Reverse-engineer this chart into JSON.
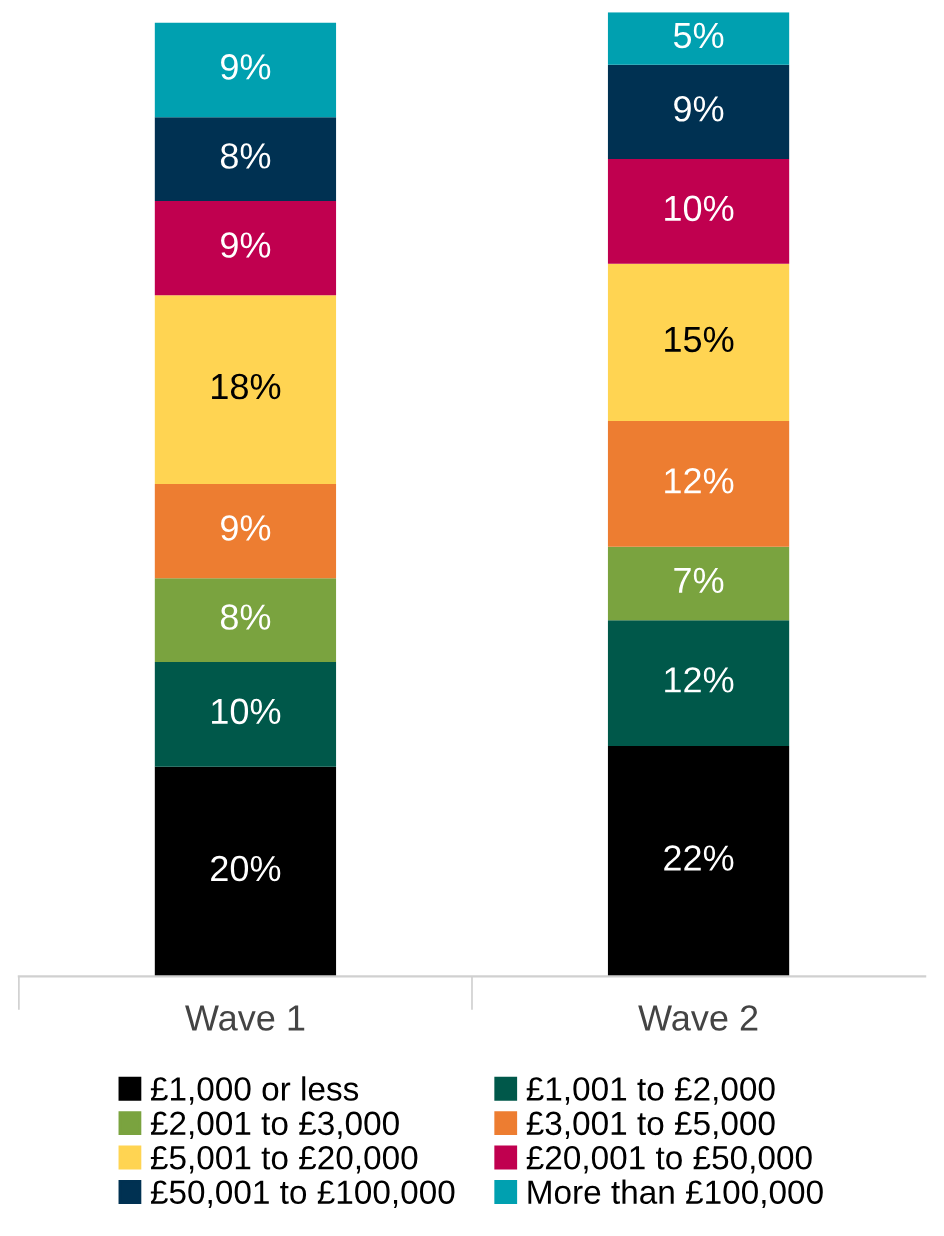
{
  "chart_data": {
    "type": "bar",
    "stacked": true,
    "legend": "bottom",
    "grid": false,
    "categories": [
      "Wave 1",
      "Wave 2"
    ],
    "series": [
      {
        "name": "£1,000 or less",
        "color": "#000000",
        "values": [
          20,
          22
        ],
        "value_labels": [
          "20%",
          "22%"
        ]
      },
      {
        "name": "£1,001 to £2,000",
        "color": "#00584a",
        "values": [
          10,
          12
        ],
        "value_labels": [
          "10%",
          "12%"
        ]
      },
      {
        "name": "£2,001 to £3,000",
        "color": "#7aa33f",
        "values": [
          8,
          7
        ],
        "value_labels": [
          "8%",
          "7%"
        ]
      },
      {
        "name": "£3,001 to £5,000",
        "color": "#ed7d31",
        "values": [
          9,
          12
        ],
        "value_labels": [
          "9%",
          "12%"
        ]
      },
      {
        "name": "£5,001 to £20,000",
        "color": "#ffd452",
        "values": [
          18,
          15
        ],
        "value_labels": [
          "18%",
          "15%"
        ]
      },
      {
        "name": "£20,001 to £50,000",
        "color": "#c0004f",
        "values": [
          9,
          10
        ],
        "value_labels": [
          "9%",
          "10%"
        ]
      },
      {
        "name": "£50,001 to £100,000",
        "color": "#003152",
        "values": [
          8,
          9
        ],
        "value_labels": [
          "8%",
          "9%"
        ]
      },
      {
        "name": "More than £100,000",
        "color": "#00a0b0",
        "values": [
          9,
          5
        ],
        "value_labels": [
          "9%",
          "5%"
        ]
      }
    ]
  }
}
